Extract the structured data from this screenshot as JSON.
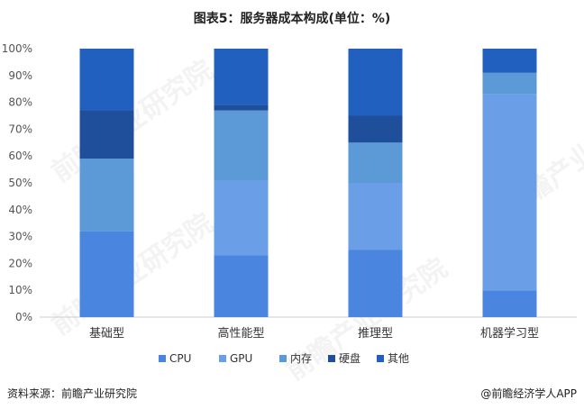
{
  "title": "图表5：服务器成本构成(单位：%)",
  "footer": {
    "source": "资料来源：前瞻产业研究院",
    "credit": "@前瞻经济学人APP"
  },
  "watermark": "前瞻产业研究院",
  "chart_data": {
    "type": "bar",
    "stacked": true,
    "categories": [
      "基础型",
      "高性能型",
      "推理型",
      "机器学习型"
    ],
    "ylim": [
      0,
      100
    ],
    "yticks": [
      "0%",
      "10%",
      "20%",
      "30%",
      "40%",
      "50%",
      "60%",
      "70%",
      "80%",
      "90%",
      "100%"
    ],
    "series": [
      {
        "name": "CPU",
        "color": "#4a86e0",
        "values": [
          32,
          23,
          25,
          10
        ]
      },
      {
        "name": "GPU",
        "color": "#6a9ee6",
        "values": [
          0,
          28,
          25,
          73
        ]
      },
      {
        "name": "内存",
        "color": "#5b9ad6",
        "values": [
          27,
          26,
          15,
          8
        ]
      },
      {
        "name": "硬盘",
        "color": "#1f4e9a",
        "values": [
          18,
          2,
          10,
          0
        ]
      },
      {
        "name": "其他",
        "color": "#2160be",
        "values": [
          23,
          21,
          25,
          9
        ]
      }
    ],
    "legend_position": "bottom",
    "grid": false
  }
}
